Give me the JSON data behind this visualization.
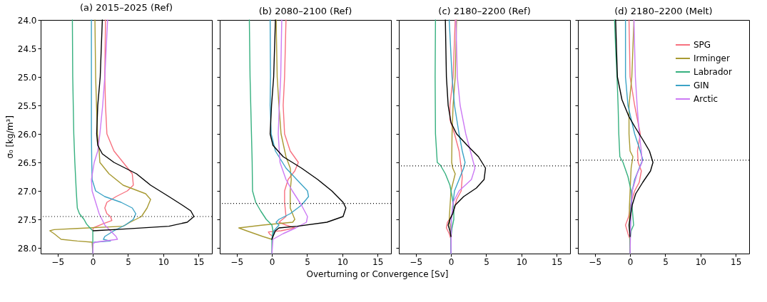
{
  "chart_data": [
    {
      "type": "line",
      "title": "(a) 2015–2025 (Ref)",
      "ylabel": "σ₀ [kg/m³]",
      "xlim": [
        -7.4,
        16.9
      ],
      "ylim": [
        28.1,
        24.0
      ],
      "xticks": [
        -5,
        0,
        5,
        10,
        15
      ],
      "yticks": [
        {
          "value": 24,
          "label": "24.0"
        },
        24.5,
        {
          "value": 25,
          "label": "25.0"
        },
        25.5,
        {
          "value": 26,
          "label": "26.0"
        },
        26.5,
        {
          "value": 27,
          "label": "27.0"
        },
        27.5,
        {
          "value": 28,
          "label": "28.0"
        }
      ],
      "grid": false,
      "ref_lines": [
        {
          "axis": "y",
          "value": 27.45,
          "line_style": "dotted",
          "color": "#000000"
        }
      ],
      "series": [
        {
          "color": "#f7717f",
          "x": [
            1.8,
            1.7,
            1.8,
            2.0,
            3.0,
            4.3,
            5.6,
            5.75,
            4.9,
            3.3,
            2.0,
            1.7,
            2.0,
            2.5,
            2.7,
            1.4,
            0.05,
            0
          ],
          "values": [
            24.0,
            25.0,
            25.5,
            26.0,
            26.3,
            26.5,
            26.7,
            26.9,
            27.0,
            27.1,
            27.2,
            27.3,
            27.4,
            27.45,
            27.52,
            27.58,
            27.65,
            27.7
          ]
        },
        {
          "color": "#a89a32",
          "x": [
            0.3,
            0.4,
            0.65,
            0.9,
            1.0,
            2.3,
            4.3,
            7.5,
            8.2,
            7.7,
            6.9,
            5.3,
            4.3,
            -2.2,
            -5.5,
            -6.1,
            -5.5,
            -4.5,
            -2.2,
            -0.1,
            0
          ],
          "values": [
            24.0,
            25.0,
            26.0,
            26.3,
            26.5,
            26.7,
            26.9,
            27.05,
            27.15,
            27.3,
            27.45,
            27.55,
            27.62,
            27.66,
            27.68,
            27.7,
            27.75,
            27.85,
            27.88,
            27.9,
            28.1
          ]
        },
        {
          "color": "#36b07f",
          "x": [
            -2.9,
            -2.85,
            -2.7,
            -2.55,
            -2.35,
            -2.2,
            -1.9,
            -1.25,
            -0.9,
            -0.4,
            0,
            0
          ],
          "values": [
            24.0,
            25.0,
            26.0,
            26.5,
            27.0,
            27.3,
            27.4,
            27.5,
            27.58,
            27.65,
            27.7,
            28.1
          ]
        },
        {
          "color": "#3ba3c6",
          "x": [
            -0.2,
            -0.2,
            -0.15,
            -0.1,
            0.4,
            1.7,
            4.0,
            5.6,
            6.1,
            5.75,
            4.6,
            3.0,
            1.7,
            1.5,
            2.5,
            0.2
          ],
          "values": [
            24.0,
            26.0,
            26.5,
            26.8,
            27.0,
            27.1,
            27.2,
            27.3,
            27.4,
            27.5,
            27.6,
            27.7,
            27.8,
            27.85,
            27.88,
            27.9
          ]
        },
        {
          "color": "#cc7af4",
          "x": [
            2.1,
            1.7,
            1.4,
            1.0,
            0.7,
            0.2,
            -0.2,
            -0.1,
            0.4,
            0.9,
            1.7,
            2.5,
            3.3,
            3.5,
            0.4,
            0.05,
            0
          ],
          "values": [
            24.0,
            25.0,
            25.5,
            26.0,
            26.3,
            26.5,
            26.8,
            27.0,
            27.2,
            27.4,
            27.6,
            27.7,
            27.8,
            27.85,
            27.9,
            27.92,
            28.1
          ]
        },
        {
          "color": "#000000",
          "x": [
            1.35,
            1.05,
            0.7,
            0.55,
            0.7,
            1.35,
            3.0,
            6.2,
            8.2,
            10.8,
            12.7,
            13.9,
            14.35,
            13.4,
            10.8,
            4.3,
            0.05
          ],
          "values": [
            24.0,
            25.0,
            25.5,
            26.0,
            26.2,
            26.35,
            26.5,
            26.7,
            26.9,
            27.1,
            27.25,
            27.35,
            27.45,
            27.55,
            27.62,
            27.67,
            27.7
          ]
        }
      ]
    },
    {
      "type": "line",
      "title": "(b) 2080–2100 (Ref)",
      "xlabel": "Overturning or Convergence [Sv]",
      "xlim": [
        -7.4,
        16.9
      ],
      "ylim": [
        28.1,
        24.0
      ],
      "xticks": [
        -5,
        0,
        5,
        10,
        15
      ],
      "yticks": [
        24.0,
        24.5,
        25.0,
        25.5,
        26.0,
        26.5,
        27.0,
        27.5,
        28.0
      ],
      "grid": false,
      "tick_labels": "x",
      "ref_lines": [
        {
          "axis": "y",
          "value": 27.22,
          "line_style": "dotted",
          "color": "#000000"
        }
      ],
      "series": [
        {
          "color": "#f7717f",
          "x": [
            2.0,
            1.8,
            1.6,
            1.8,
            2.6,
            3.75,
            3.25,
            2.3,
            1.8,
            1.8,
            2.0,
            1.0,
            2.0,
            3.25,
            1.3,
            -0.5,
            -0.3,
            0.15,
            0
          ],
          "values": [
            24.0,
            25.0,
            25.5,
            26.0,
            26.3,
            26.5,
            26.65,
            26.8,
            27.0,
            27.2,
            27.45,
            27.55,
            27.6,
            27.65,
            27.7,
            27.72,
            27.76,
            27.8,
            27.85
          ]
        },
        {
          "color": "#a89a32",
          "x": [
            0.6,
            0.75,
            1.0,
            1.3,
            2.0,
            2.6,
            2.75,
            2.6,
            2.6,
            3.25,
            2.95,
            -1.3,
            -4.7,
            -3.6,
            -1.3,
            0
          ],
          "values": [
            24.0,
            25.0,
            25.5,
            26.0,
            26.4,
            26.6,
            26.8,
            27.0,
            27.3,
            27.5,
            27.55,
            27.6,
            27.65,
            27.7,
            27.8,
            27.85
          ]
        },
        {
          "color": "#36b07f",
          "x": [
            -3.2,
            -3.1,
            -2.9,
            -2.8,
            -2.75,
            -2.3,
            -1.6,
            -0.8,
            0,
            0.15,
            0,
            0
          ],
          "values": [
            24.0,
            25.0,
            26.0,
            26.5,
            27.0,
            27.2,
            27.35,
            27.5,
            27.6,
            27.7,
            27.85,
            28.1
          ]
        },
        {
          "color": "#3ba3c6",
          "x": [
            -0.25,
            -0.2,
            -0.25,
            -0.1,
            0.5,
            2.0,
            3.9,
            5.05,
            5.2,
            4.2,
            2.6,
            1.0,
            0.6,
            1.0,
            0.3,
            0
          ],
          "values": [
            24.0,
            25.0,
            25.5,
            26.0,
            26.3,
            26.6,
            26.85,
            27.0,
            27.1,
            27.25,
            27.4,
            27.5,
            27.55,
            27.6,
            27.7,
            27.85
          ]
        },
        {
          "color": "#cc7af4",
          "x": [
            1.4,
            1.25,
            1.05,
            0.9,
            1.15,
            2.0,
            2.9,
            4.2,
            5.05,
            4.9,
            3.4,
            1.6,
            0.15,
            0
          ],
          "values": [
            24.0,
            25.0,
            25.5,
            26.0,
            26.5,
            26.8,
            27.0,
            27.25,
            27.45,
            27.55,
            27.65,
            27.75,
            27.85,
            28.1
          ]
        },
        {
          "color": "#000000",
          "x": [
            0.5,
            0.25,
            -0.05,
            -0.25,
            0.15,
            1.6,
            4.2,
            6.5,
            8.5,
            10.1,
            10.5,
            10.1,
            7.8,
            3.6,
            1.0,
            0.5,
            0.15,
            0
          ],
          "values": [
            24.0,
            25.0,
            25.5,
            26.0,
            26.2,
            26.4,
            26.6,
            26.8,
            27.0,
            27.2,
            27.3,
            27.45,
            27.55,
            27.62,
            27.65,
            27.7,
            27.8,
            27.85
          ]
        }
      ]
    },
    {
      "type": "line",
      "title": "(c) 2180–2200 (Ref)",
      "xlim": [
        -7.4,
        16.9
      ],
      "ylim": [
        28.1,
        24.0
      ],
      "xticks": [
        -5,
        0,
        5,
        10,
        15
      ],
      "yticks": [
        24.0,
        24.5,
        25.0,
        25.5,
        26.0,
        26.5,
        27.0,
        27.5,
        28.0
      ],
      "grid": false,
      "tick_labels": "x",
      "ref_lines": [
        {
          "axis": "y",
          "value": 26.56,
          "line_style": "dotted",
          "color": "#000000"
        }
      ],
      "series": [
        {
          "color": "#f7717f",
          "x": [
            0.6,
            0.3,
            -0.15,
            -0.15,
            0.5,
            1.15,
            1.35,
            1.6,
            1.45,
            0.8,
            0.5,
            0,
            -0.5,
            -0.65,
            -0.25,
            0,
            0
          ],
          "values": [
            24.0,
            25.0,
            25.5,
            25.75,
            26.0,
            26.3,
            26.5,
            26.75,
            27.0,
            27.15,
            27.3,
            27.45,
            27.55,
            27.65,
            27.75,
            27.85,
            28.1
          ]
        },
        {
          "color": "#a89a32",
          "x": [
            0.8,
            0.6,
            0.3,
            0.15,
            0.1,
            0.25,
            0.6,
            0.3,
            0,
            -0.15,
            -0.25,
            0,
            0
          ],
          "values": [
            24.0,
            25.0,
            25.5,
            26.0,
            26.5,
            26.6,
            26.7,
            26.85,
            27.0,
            27.3,
            27.5,
            27.7,
            28.1
          ]
        },
        {
          "color": "#36b07f",
          "x": [
            -2.2,
            -2.25,
            -2.2,
            -1.95,
            -1.5,
            -0.8,
            -0.15,
            0.15,
            0.4,
            0.4,
            0.15,
            0,
            0
          ],
          "values": [
            24.0,
            25.0,
            26.0,
            26.5,
            26.55,
            26.7,
            26.9,
            27.1,
            27.3,
            27.5,
            27.65,
            27.8,
            28.1
          ]
        },
        {
          "color": "#3ba3c6",
          "x": [
            -0.25,
            0.15,
            0.5,
            1.15,
            1.6,
            2.0,
            1.8,
            1.15,
            0.5,
            0.3,
            0.05,
            0
          ],
          "values": [
            24.0,
            25.0,
            25.5,
            26.0,
            26.3,
            26.5,
            26.6,
            26.8,
            27.0,
            27.2,
            27.5,
            28.1
          ]
        },
        {
          "color": "#cc7af4",
          "x": [
            0.7,
            0.9,
            1.3,
            2.1,
            2.75,
            3.4,
            2.9,
            1.15,
            0.3,
            0.05,
            0
          ],
          "values": [
            24.0,
            25.0,
            25.5,
            26.0,
            26.3,
            26.6,
            26.8,
            27.0,
            27.2,
            27.5,
            28.1
          ]
        },
        {
          "color": "#000000",
          "x": [
            -0.8,
            -0.65,
            -0.4,
            0,
            0.8,
            2.3,
            3.9,
            4.9,
            4.7,
            3.6,
            1.8,
            0.6,
            0.25,
            -0.15,
            -0.4,
            -0.15,
            0
          ],
          "values": [
            24.0,
            25.0,
            25.5,
            25.8,
            26.0,
            26.2,
            26.4,
            26.6,
            26.8,
            26.95,
            27.1,
            27.25,
            27.4,
            27.5,
            27.6,
            27.7,
            27.8
          ]
        }
      ]
    },
    {
      "type": "line",
      "title": "(d) 2180–2200 (Melt)",
      "xlim": [
        -7.4,
        16.9
      ],
      "ylim": [
        28.1,
        24.0
      ],
      "xticks": [
        -5,
        0,
        5,
        10,
        15
      ],
      "yticks": [
        24.0,
        24.5,
        25.0,
        25.5,
        26.0,
        26.5,
        27.0,
        27.5,
        28.0
      ],
      "grid": false,
      "tick_labels": "x",
      "legend": "top right",
      "ref_lines": [
        {
          "axis": "y",
          "value": 26.46,
          "line_style": "dotted",
          "color": "#000000"
        }
      ],
      "series": [
        {
          "name": "SPG",
          "color": "#f7717f",
          "x": [
            -0.15,
            0,
            0.65,
            1.45,
            1.05,
            1.15,
            1.6,
            1.3,
            0.65,
            0.15,
            -0.2,
            -0.65,
            -0.3,
            0
          ],
          "values": [
            24.0,
            25.0,
            25.5,
            26.0,
            26.3,
            26.5,
            26.65,
            26.85,
            27.0,
            27.2,
            27.45,
            27.6,
            27.75,
            27.85
          ]
        },
        {
          "name": "Irminger",
          "color": "#a89a32",
          "x": [
            0.55,
            0.25,
            -0.15,
            -0.15,
            0,
            0.4,
            0.15,
            0,
            -0.1,
            0
          ],
          "values": [
            24.0,
            25.0,
            25.5,
            26.0,
            26.3,
            26.4,
            26.6,
            27.0,
            27.3,
            28.1
          ]
        },
        {
          "name": "Labrador",
          "color": "#36b07f",
          "x": [
            -2.2,
            -2.05,
            -1.85,
            -1.7,
            -1.6,
            -1.45,
            -1.0,
            -0.3,
            0.15,
            0.3,
            0.5,
            0.15,
            0,
            0
          ],
          "values": [
            24.0,
            24.5,
            25.0,
            25.5,
            26.0,
            26.4,
            26.5,
            26.75,
            27.0,
            27.3,
            27.6,
            27.7,
            27.85,
            28.1
          ]
        },
        {
          "name": "GIN",
          "color": "#3ba3c6",
          "x": [
            -0.65,
            -0.65,
            -0.3,
            0.65,
            1.45,
            1.8,
            1.3,
            0.65,
            0.3,
            0.1,
            0
          ],
          "values": [
            24.0,
            25.0,
            25.5,
            26.0,
            26.3,
            26.45,
            26.6,
            26.8,
            27.0,
            27.3,
            27.8
          ]
        },
        {
          "name": "Arctic",
          "color": "#cc7af4",
          "x": [
            0.55,
            0.75,
            1.0,
            1.3,
            1.6,
            1.7,
            1.0,
            0.3,
            0.1,
            0
          ],
          "values": [
            24.0,
            25.0,
            25.5,
            26.0,
            26.3,
            26.5,
            26.7,
            27.0,
            27.5,
            28.1
          ]
        },
        {
          "color": "#000000",
          "x": [
            -2.05,
            -1.8,
            -1.15,
            -0.15,
            0.8,
            1.8,
            2.75,
            3.25,
            2.9,
            1.8,
            0.8,
            0.3,
            0.1,
            -0.15,
            0
          ],
          "values": [
            24.0,
            25.0,
            25.4,
            25.7,
            25.9,
            26.1,
            26.3,
            26.5,
            26.65,
            26.85,
            27.05,
            27.25,
            27.4,
            27.6,
            27.8
          ]
        }
      ]
    }
  ]
}
